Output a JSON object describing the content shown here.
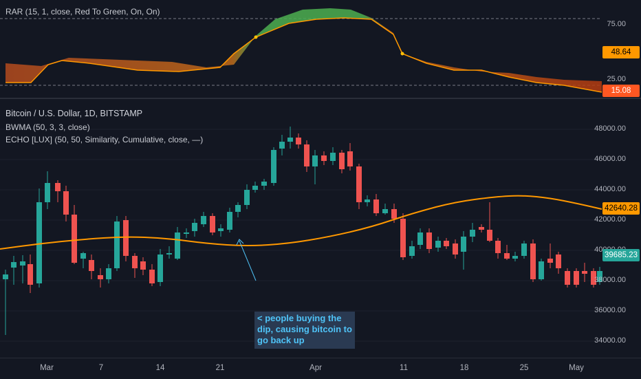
{
  "indicator_pane": {
    "legend": "RAR (15, 1, close, Red To Green, On, On)",
    "axis_labels": [
      "75.00",
      "25.00"
    ],
    "value_tags": [
      {
        "text": "48.64",
        "color": "#ff9800",
        "text_color": "#000000"
      },
      {
        "text": "15.08",
        "color": "#ff5722",
        "text_color": "#ffffff"
      }
    ]
  },
  "main_pane": {
    "title": "Bitcoin / U.S. Dollar, 1D, BITSTAMP",
    "legend_lines": [
      "BWMA (50, 3, 3, close)",
      "ECHO [LUX] (50, 50, Similarity, Cumulative, close, —)"
    ],
    "price_axis": [
      "48000.00",
      "46000.00",
      "44000.00",
      "42000.00",
      "40000.00",
      "38000.00",
      "36000.00",
      "34000.00"
    ],
    "price_tags": [
      {
        "text": "42640.28",
        "color": "#ff9800",
        "text_color": "#000000"
      },
      {
        "text": "39685.23",
        "color": "#26a69a",
        "text_color": "#ffffff"
      }
    ],
    "annotation": "< people buying the dip, causing bitcoin to go back up"
  },
  "time_axis": [
    "Mar",
    "7",
    "14",
    "21",
    "Apr",
    "11",
    "18",
    "25",
    "May"
  ],
  "colors": {
    "up": "#26a69a",
    "down": "#ef5350",
    "bwma": "#ff9800",
    "rar_green": "#4caf50",
    "rar_red": "#ff5722"
  }
}
